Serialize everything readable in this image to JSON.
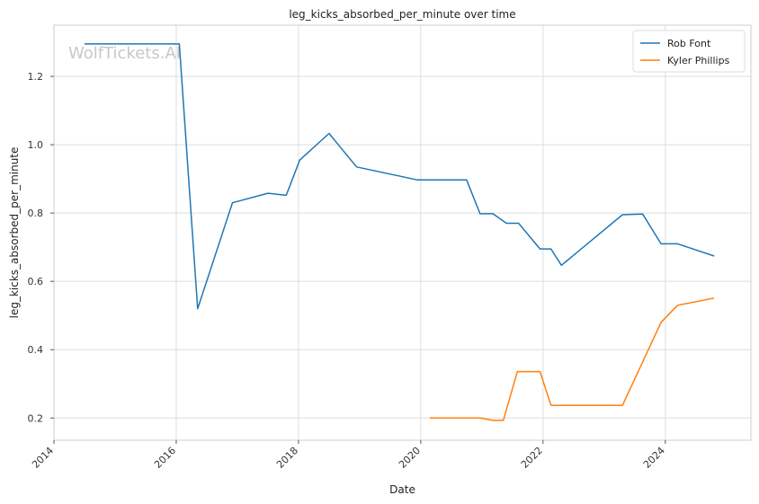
{
  "chart_data": {
    "type": "line",
    "title": "leg_kicks_absorbed_per_minute over time",
    "xlabel": "Date",
    "ylabel": "leg_kicks_absorbed_per_minute",
    "watermark": "WolfTickets.AI",
    "xlim": [
      2014.0,
      2025.4
    ],
    "ylim": [
      0.135,
      1.35
    ],
    "x_ticks": [
      2014,
      2016,
      2018,
      2020,
      2022,
      2024
    ],
    "y_ticks": [
      0.2,
      0.4,
      0.6,
      0.8,
      1.0,
      1.2
    ],
    "x_tick_labels": [
      "2014",
      "2016",
      "2018",
      "2020",
      "2022",
      "2024"
    ],
    "y_tick_labels": [
      "0.2",
      "0.4",
      "0.6",
      "0.8",
      "1.0",
      "1.2"
    ],
    "grid": true,
    "legend_position": "top-right",
    "series": [
      {
        "name": "Rob Font",
        "color": "#1f77b4",
        "x": [
          2014.5,
          2016.05,
          2016.35,
          2016.92,
          2017.5,
          2017.8,
          2018.02,
          2018.5,
          2018.95,
          2019.95,
          2020.55,
          2020.75,
          2020.97,
          2021.18,
          2021.4,
          2021.6,
          2021.95,
          2022.13,
          2022.3,
          2023.3,
          2023.63,
          2023.93,
          2024.2,
          2024.8
        ],
        "y": [
          1.295,
          1.295,
          0.52,
          0.83,
          0.858,
          0.852,
          0.955,
          1.033,
          0.935,
          0.897,
          0.897,
          0.897,
          0.798,
          0.798,
          0.77,
          0.77,
          0.695,
          0.695,
          0.647,
          0.795,
          0.797,
          0.71,
          0.71,
          0.674
        ]
      },
      {
        "name": "Kyler Phillips",
        "color": "#ff7f0e",
        "x": [
          2020.15,
          2020.97,
          2021.18,
          2021.35,
          2021.58,
          2021.95,
          2022.13,
          2023.3,
          2023.93,
          2024.2,
          2024.8
        ],
        "y": [
          0.2,
          0.2,
          0.193,
          0.193,
          0.336,
          0.336,
          0.237,
          0.237,
          0.48,
          0.53,
          0.551
        ]
      }
    ]
  }
}
